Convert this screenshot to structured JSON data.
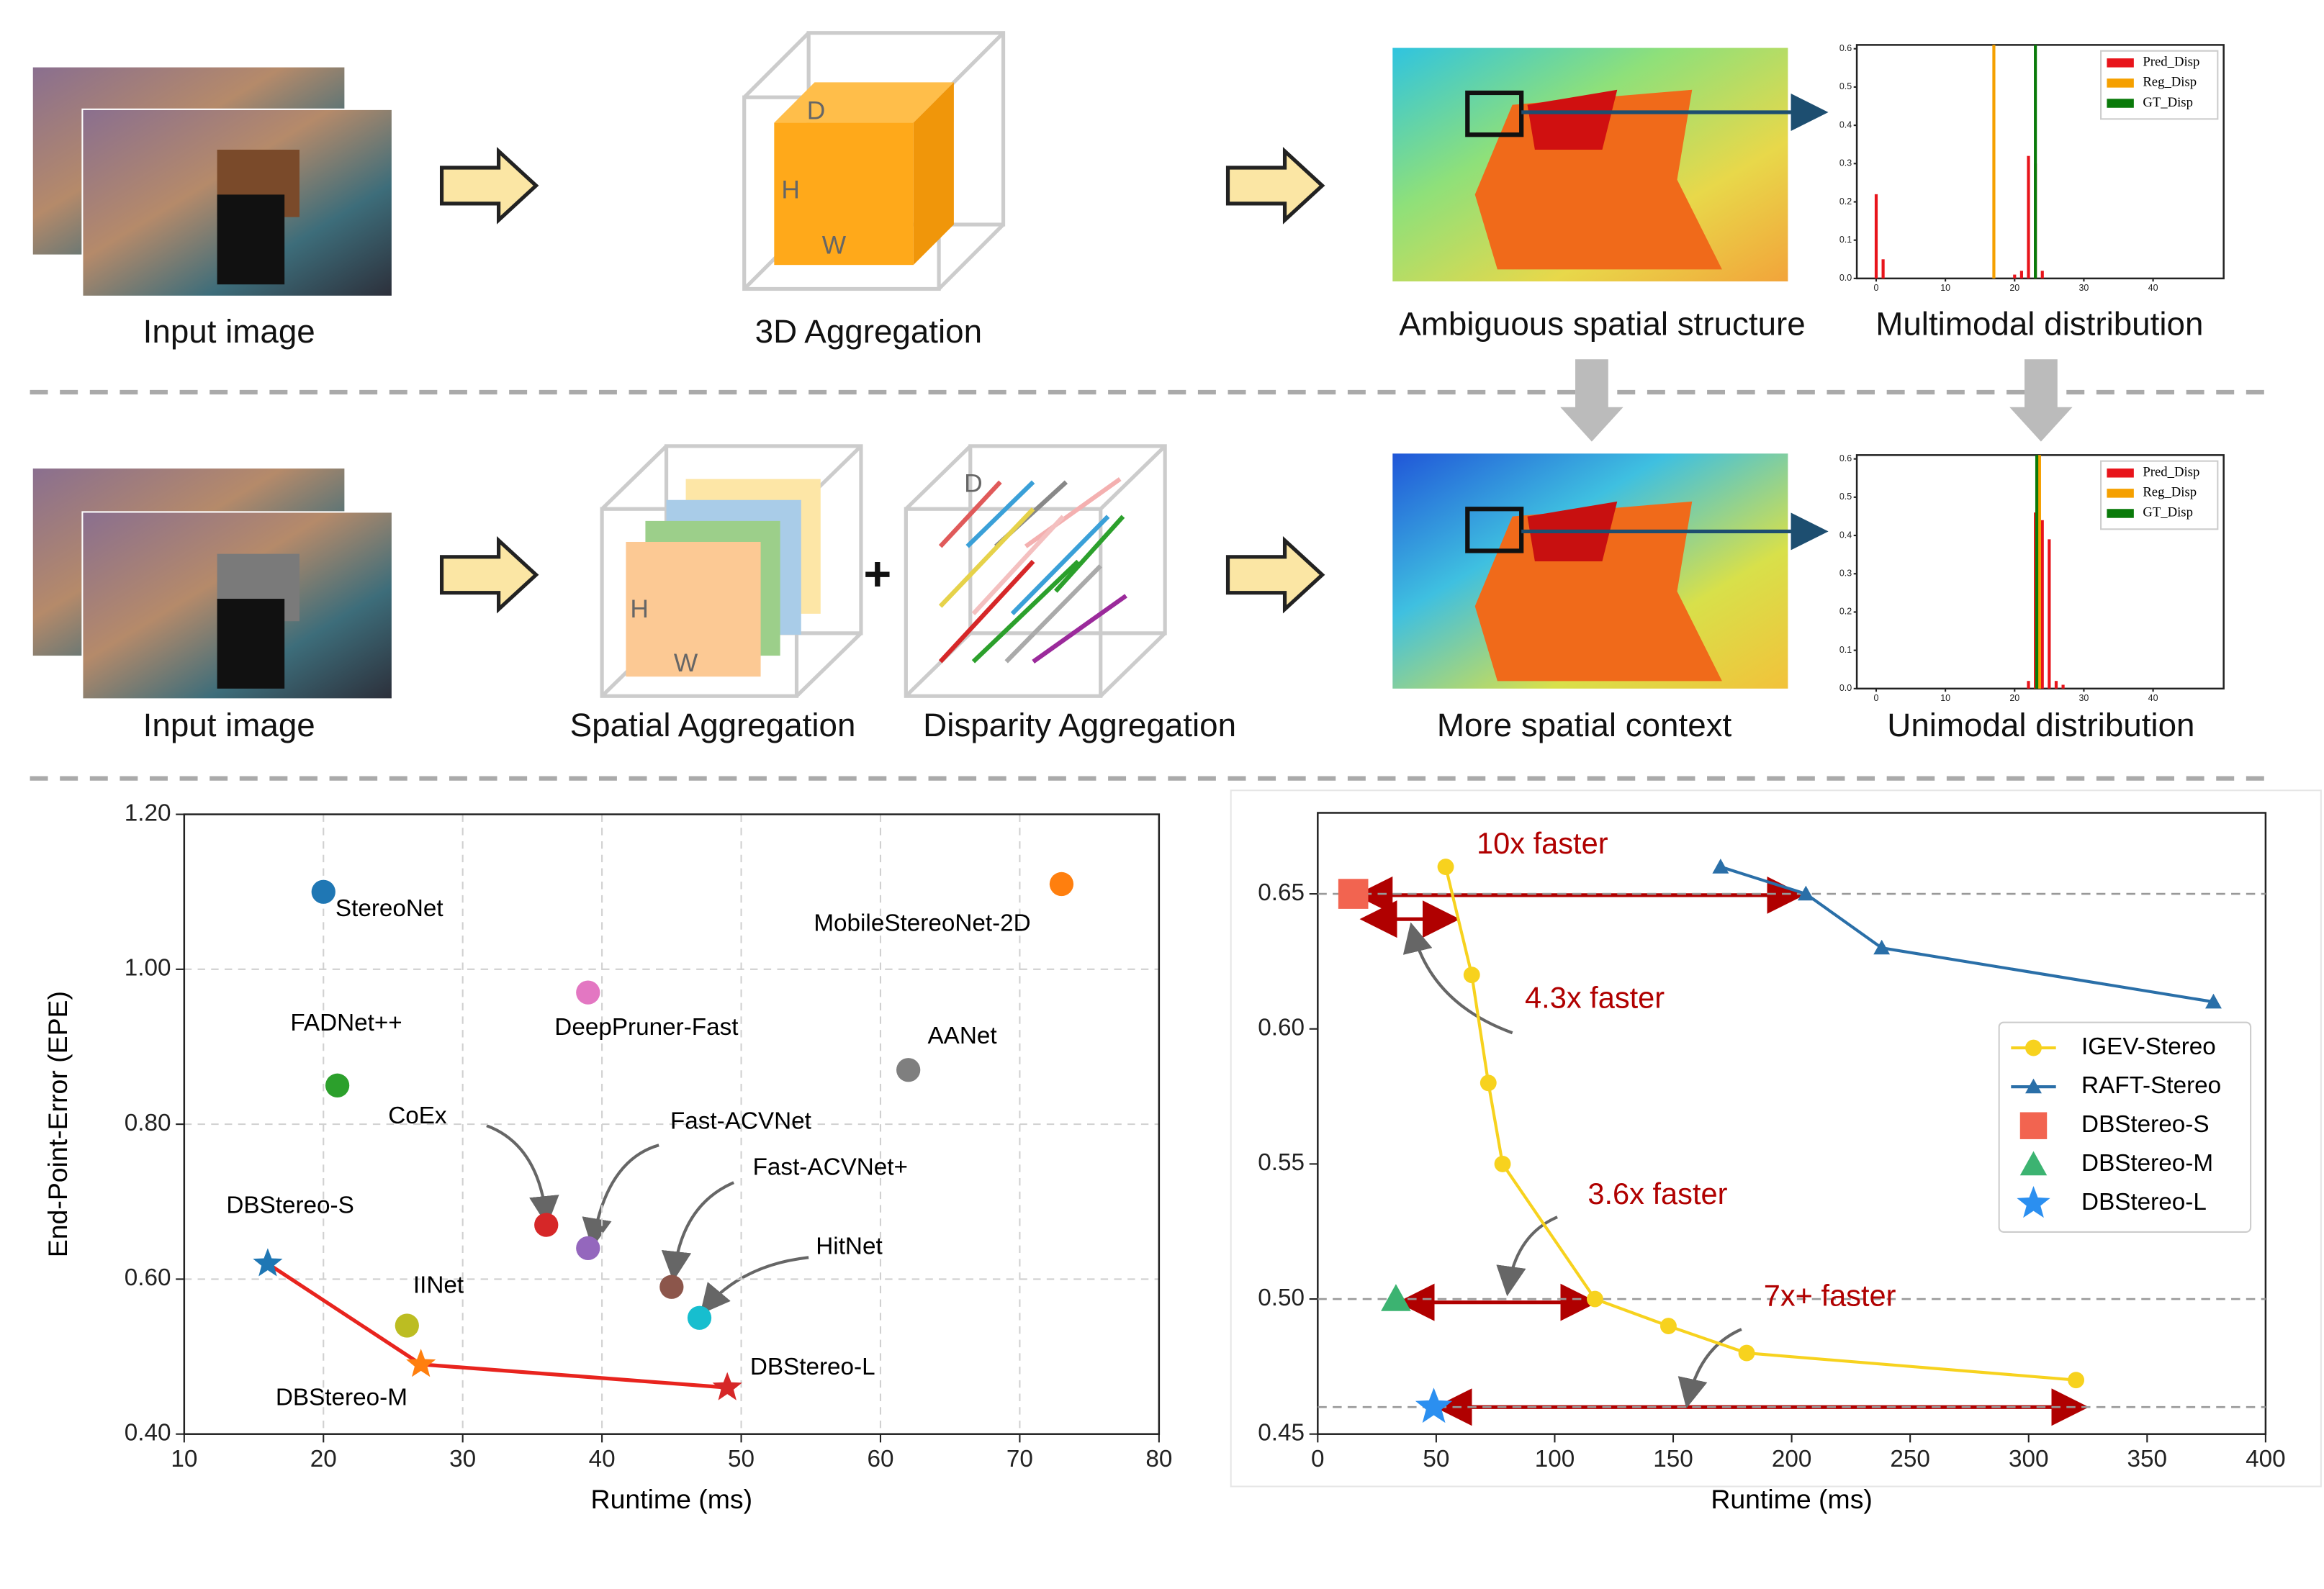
{
  "diagram": {
    "row1": {
      "input": "Input image",
      "aggregation": "3D Aggregation",
      "cube_labels": [
        "D",
        "H",
        "W"
      ],
      "structure": "Ambiguous spatial structure",
      "distribution": "Multimodal distribution"
    },
    "row2": {
      "input": "Input image",
      "spatial": "Spatial Aggregation",
      "spatial_labels": [
        "H",
        "W"
      ],
      "plus": "+",
      "disparity": "Disparity Aggregation",
      "disparity_label": "D",
      "structure": "More spatial context",
      "distribution": "Unimodal distribution"
    }
  },
  "chart_data": [
    {
      "type": "histogram",
      "xlim": [
        -2.8,
        50.2
      ],
      "ylim": [
        0,
        0.61
      ],
      "xticks": [
        0,
        10,
        20,
        30,
        40
      ],
      "yticks": [
        {
          "value": 0,
          "label": "0.0"
        },
        {
          "value": 0.1,
          "label": "0.1"
        },
        {
          "value": 0.2,
          "label": "0.2"
        },
        {
          "value": 0.3,
          "label": "0.3"
        },
        {
          "value": 0.4,
          "label": "0.4"
        },
        {
          "value": 0.5,
          "label": "0.5"
        },
        {
          "value": 0.6,
          "label": "0.6"
        }
      ],
      "series": [
        {
          "name": "Pred_Disp",
          "color": "#e8141b",
          "x": [
            0,
            1,
            20,
            21,
            22,
            23,
            24
          ],
          "values": [
            0.22,
            0.05,
            0.01,
            0.02,
            0.32,
            0.3,
            0.02
          ]
        }
      ],
      "markers": [
        {
          "name": "Reg_Disp",
          "color": "#f5a000",
          "x": 17
        },
        {
          "name": "GT_Disp",
          "color": "#0a7a0a",
          "x": 23
        }
      ]
    },
    {
      "type": "histogram",
      "xlim": [
        -2.8,
        50.2
      ],
      "ylim": [
        0,
        0.61
      ],
      "xticks": [
        0,
        10,
        20,
        30,
        40
      ],
      "yticks": [
        {
          "value": 0,
          "label": "0.0"
        },
        {
          "value": 0.1,
          "label": "0.1"
        },
        {
          "value": 0.2,
          "label": "0.2"
        },
        {
          "value": 0.3,
          "label": "0.3"
        },
        {
          "value": 0.4,
          "label": "0.4"
        },
        {
          "value": 0.5,
          "label": "0.5"
        },
        {
          "value": 0.6,
          "label": "0.6"
        }
      ],
      "series": [
        {
          "name": "Pred_Disp",
          "color": "#e8141b",
          "x": [
            22,
            23,
            24,
            25,
            26,
            27
          ],
          "values": [
            0.02,
            0.46,
            0.44,
            0.39,
            0.02,
            0.01
          ]
        }
      ],
      "markers": [
        {
          "name": "Reg_Disp",
          "color": "#f5a000",
          "x": 23.6
        },
        {
          "name": "GT_Disp",
          "color": "#0a7a0a",
          "x": 23.2
        }
      ]
    },
    {
      "type": "scatter",
      "xlabel": "Runtime (ms)",
      "ylabel": "End-Point-Error (EPE)",
      "xlim": [
        10,
        80
      ],
      "ylim": [
        0.4,
        1.2
      ],
      "xticks": [
        10,
        20,
        30,
        40,
        50,
        60,
        70,
        80
      ],
      "yticks": [
        {
          "value": 0.4,
          "label": "0.40"
        },
        {
          "value": 0.6,
          "label": "0.60"
        },
        {
          "value": 0.8,
          "label": "0.80"
        },
        {
          "value": 1.0,
          "label": "1.00"
        },
        {
          "value": 1.2,
          "label": "1.20"
        }
      ],
      "grid": true,
      "series": [
        {
          "name": "StereoNet",
          "color": "#1f77b4",
          "x": [
            20
          ],
          "values": [
            1.1
          ]
        },
        {
          "name": "MobileStereoNet-2D",
          "color": "#ff7f0e",
          "x": [
            73
          ],
          "values": [
            1.11
          ]
        },
        {
          "name": "DeepPruner-Fast",
          "color": "#e377c2",
          "x": [
            39
          ],
          "values": [
            0.97
          ]
        },
        {
          "name": "FADNet++",
          "color": "#2ca02c",
          "x": [
            21
          ],
          "values": [
            0.85
          ]
        },
        {
          "name": "AANet",
          "color": "#7f7f7f",
          "x": [
            62
          ],
          "values": [
            0.87
          ]
        },
        {
          "name": "CoEx",
          "color": "#d62728",
          "x": [
            36
          ],
          "values": [
            0.67
          ]
        },
        {
          "name": "Fast-ACVNet",
          "color": "#9467bd",
          "x": [
            39
          ],
          "values": [
            0.64
          ]
        },
        {
          "name": "Fast-ACVNet+",
          "color": "#8c564b",
          "x": [
            45
          ],
          "values": [
            0.59
          ]
        },
        {
          "name": "HitNet",
          "color": "#17becf",
          "x": [
            47
          ],
          "values": [
            0.55
          ]
        },
        {
          "name": "IINet",
          "color": "#bcbd22",
          "x": [
            26
          ],
          "values": [
            0.54
          ]
        }
      ],
      "highlight": {
        "labels": [
          "DBStereo-S",
          "DBStereo-M",
          "DBStereo-L"
        ],
        "colors": [
          "#1f77b4",
          "#ff7f0e",
          "#d62728"
        ],
        "line_color": "#e8241e",
        "x": [
          16,
          27,
          49
        ],
        "values": [
          0.62,
          0.49,
          0.46
        ]
      }
    },
    {
      "type": "line",
      "xlabel": "Runtime (ms)",
      "xlim": [
        0,
        400
      ],
      "ylim": [
        0.45,
        0.68
      ],
      "xticks": [
        0,
        50,
        100,
        150,
        200,
        250,
        300,
        350,
        400
      ],
      "yticks": [
        {
          "value": 0.45,
          "label": "0.45"
        },
        {
          "value": 0.5,
          "label": "0.50"
        },
        {
          "value": 0.55,
          "label": "0.55"
        },
        {
          "value": 0.6,
          "label": "0.60"
        },
        {
          "value": 0.65,
          "label": "0.65"
        }
      ],
      "hlines": [
        0.65,
        0.5,
        0.46
      ],
      "legend": "right",
      "series": [
        {
          "name": "IGEV-Stereo",
          "color": "#f7d21e",
          "marker": "circle",
          "x": [
            54,
            65,
            72,
            78,
            117,
            148,
            181,
            320
          ],
          "values": [
            0.66,
            0.62,
            0.58,
            0.55,
            0.5,
            0.49,
            0.48,
            0.47
          ]
        },
        {
          "name": "RAFT-Stereo",
          "color": "#2a6fa8",
          "marker": "triangle",
          "x": [
            170,
            206,
            238,
            378
          ],
          "values": [
            0.66,
            0.65,
            0.63,
            0.61
          ]
        },
        {
          "name": "DBStereo-S",
          "color": "#f26450",
          "marker": "square",
          "x": [
            15
          ],
          "values": [
            0.65
          ]
        },
        {
          "name": "DBStereo-M",
          "color": "#3cb371",
          "marker": "triangle",
          "x": [
            33
          ],
          "values": [
            0.5
          ]
        },
        {
          "name": "DBStereo-L",
          "color": "#2b8ff0",
          "marker": "star",
          "x": [
            49
          ],
          "values": [
            0.46
          ]
        }
      ],
      "annotations": [
        "10x faster",
        "4.3x faster",
        "3.6x faster",
        "7x+ faster"
      ]
    }
  ]
}
